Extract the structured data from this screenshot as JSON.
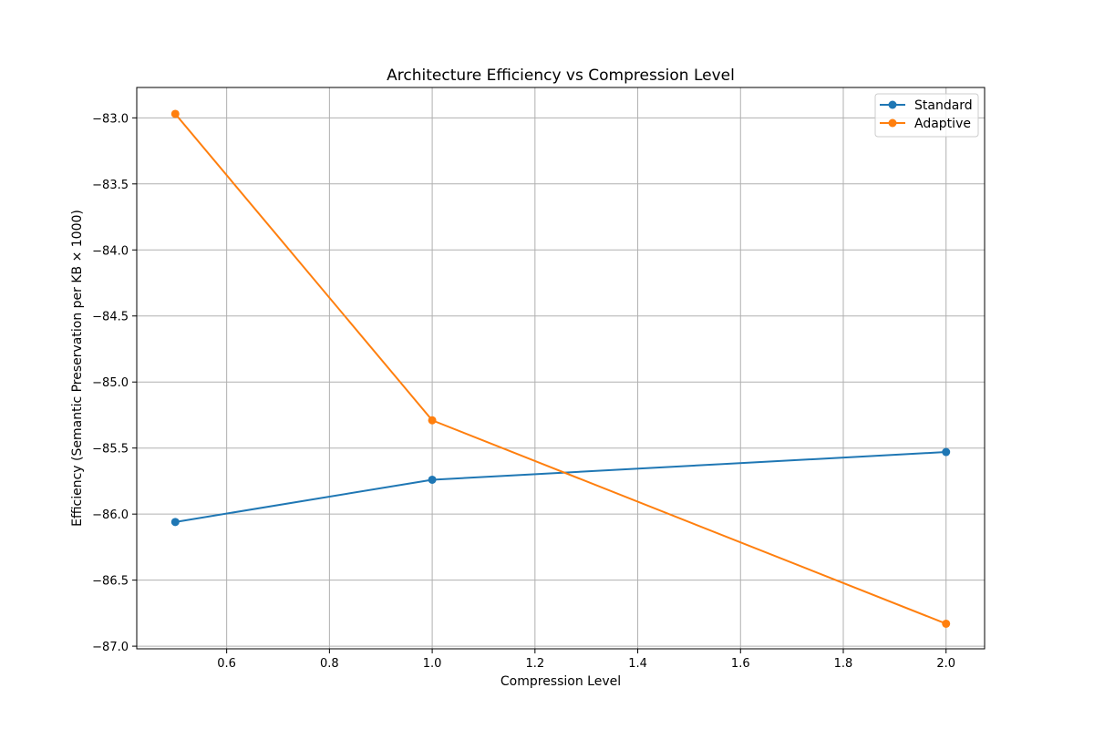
{
  "chart_data": {
    "type": "line",
    "title": "Architecture Efficiency vs Compression Level",
    "xlabel": "Compression Level",
    "ylabel": "Efficiency (Semantic Preservation per KB × 1000)",
    "x": [
      0.5,
      1.0,
      2.0
    ],
    "xlim": [
      0.425,
      2.075
    ],
    "ylim": [
      -87.02,
      -82.77
    ],
    "xticks": [
      0.6,
      0.8,
      1.0,
      1.2,
      1.4,
      1.6,
      1.8,
      2.0
    ],
    "xtick_labels": [
      "0.6",
      "0.8",
      "1.0",
      "1.2",
      "1.4",
      "1.6",
      "1.8",
      "2.0"
    ],
    "yticks": [
      -83.0,
      -83.5,
      -84.0,
      -84.5,
      -85.0,
      -85.5,
      -86.0,
      -86.5,
      -87.0
    ],
    "ytick_labels": [
      "−83.0",
      "−83.5",
      "−84.0",
      "−84.5",
      "−85.0",
      "−85.5",
      "−86.0",
      "−86.5",
      "−87.0"
    ],
    "grid": true,
    "legend_position": "top-right",
    "series": [
      {
        "name": "Standard",
        "color": "#1f77b4",
        "marker": "circle",
        "values": [
          -86.06,
          -85.74,
          -85.53
        ]
      },
      {
        "name": "Adaptive",
        "color": "#ff7f0e",
        "marker": "circle",
        "values": [
          -82.97,
          -85.29,
          -86.83
        ]
      }
    ]
  }
}
